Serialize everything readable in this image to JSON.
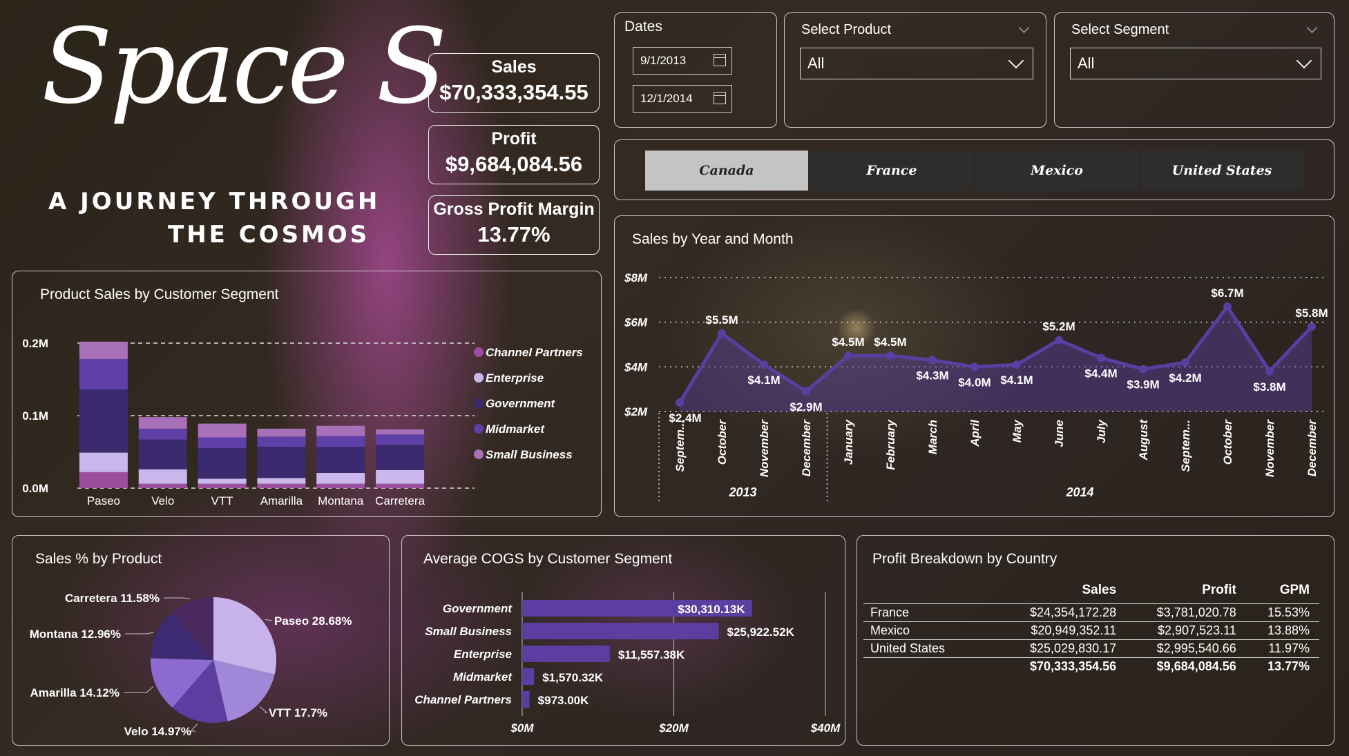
{
  "logo": {
    "script_text": "Space S",
    "tagline_line1": "A JOURNEY THROUGH",
    "tagline_line2": "THE COSMOS"
  },
  "kpis": [
    {
      "label": "Sales",
      "value": "$70,333,354.55"
    },
    {
      "label": "Profit",
      "value": "$9,684,084.56"
    },
    {
      "label": "Gross Profit Margin",
      "value": "13.77%"
    }
  ],
  "dates": {
    "title": "Dates",
    "start": "9/1/2013",
    "end": "12/1/2014"
  },
  "product_slicer": {
    "title": "Select Product",
    "value": "All"
  },
  "segment_slicer": {
    "title": "Select Segment",
    "value": "All"
  },
  "country_tabs": [
    "Canada",
    "France",
    "Mexico",
    "United States"
  ],
  "active_tab": "Canada",
  "colors": {
    "channel_partners": "#9a4f9e",
    "enterprise": "#c9b6ea",
    "government": "#3a2a6e",
    "midmarket": "#5f3fa8",
    "small_business": "#a870b8",
    "line": "#5b3ea0"
  },
  "chart_data": [
    {
      "type": "bar",
      "stacked": true,
      "title": "Product Sales by Customer Segment",
      "categories": [
        "Paseo",
        "Velo",
        "VTT",
        "Amarilla",
        "Montana",
        "Carretera"
      ],
      "yticks": [
        "0.0M",
        "0.1M",
        "0.2M"
      ],
      "ylim": [
        0,
        0.2
      ],
      "legend_position": "right",
      "series": [
        {
          "name": "Channel Partners",
          "color": "#9a4f9e",
          "values": [
            0.022,
            0.006,
            0.006,
            0.006,
            0.006,
            0.006
          ]
        },
        {
          "name": "Enterprise",
          "color": "#c9b6ea",
          "values": [
            0.027,
            0.02,
            0.007,
            0.008,
            0.015,
            0.019
          ]
        },
        {
          "name": "Government",
          "color": "#3a2a6e",
          "values": [
            0.087,
            0.041,
            0.042,
            0.043,
            0.036,
            0.035
          ]
        },
        {
          "name": "Midmarket",
          "color": "#5f3fa8",
          "values": [
            0.042,
            0.015,
            0.015,
            0.014,
            0.015,
            0.014
          ]
        },
        {
          "name": "Small Business",
          "color": "#a870b8",
          "values": [
            0.024,
            0.016,
            0.019,
            0.011,
            0.014,
            0.007
          ]
        }
      ]
    },
    {
      "type": "line",
      "title": "Sales by Year and Month",
      "months": [
        "Septem...",
        "October",
        "November",
        "December",
        "January",
        "February",
        "March",
        "April",
        "May",
        "June",
        "July",
        "August",
        "Septem...",
        "October",
        "November",
        "December"
      ],
      "years": [
        {
          "label": "2013",
          "count": 4
        },
        {
          "label": "2014",
          "count": 12
        }
      ],
      "values": [
        2.4,
        5.5,
        4.1,
        2.9,
        4.5,
        4.5,
        4.3,
        4.0,
        4.1,
        5.2,
        4.4,
        3.9,
        4.2,
        6.7,
        3.8,
        5.8
      ],
      "labels": [
        "$2.4M",
        "$5.5M",
        "$4.1M",
        "$2.9M",
        "$4.5M",
        "$4.5M",
        "$4.3M",
        "$4.0M",
        "$4.1M",
        "$5.2M",
        "$4.4M",
        "$3.9M",
        "$4.2M",
        "$6.7M",
        "$3.8M",
        "$5.8M"
      ],
      "yticks": [
        "$2M",
        "$4M",
        "$6M",
        "$8M"
      ],
      "ylim": [
        2,
        8
      ]
    },
    {
      "type": "pie",
      "title": "Sales % by Product",
      "slices": [
        {
          "label": "Paseo 28.68%",
          "value": 28.68,
          "color": "#c7b3ea"
        },
        {
          "label": "VTT 17.7%",
          "value": 17.7,
          "color": "#a187d8"
        },
        {
          "label": "Velo 14.97%",
          "value": 14.97,
          "color": "#5b3ea0"
        },
        {
          "label": "Amarilla 14.12%",
          "value": 14.12,
          "color": "#8d6ad0"
        },
        {
          "label": "Montana 12.96%",
          "value": 12.96,
          "color": "#3c2a72"
        },
        {
          "label": "Carretera 11.58%",
          "value": 11.58,
          "color": "#4a2a5e"
        }
      ]
    },
    {
      "type": "bar",
      "orientation": "horizontal",
      "title": "Average COGS by Customer Segment",
      "categories": [
        "Government",
        "Small Business",
        "Enterprise",
        "Midmarket",
        "Channel Partners"
      ],
      "values": [
        30310.13,
        25922.52,
        11557.38,
        1570.32,
        973.0
      ],
      "labels": [
        "$30,310.13K",
        "$25,922.52K",
        "$11,557.38K",
        "$1,570.32K",
        "$973.00K"
      ],
      "xticks": [
        "$0M",
        "$20M",
        "$40M"
      ],
      "xlim": [
        0,
        40000
      ]
    }
  ],
  "profit_table": {
    "title": "Profit Breakdown by Country",
    "columns": [
      "",
      "Sales",
      "Profit",
      "GPM"
    ],
    "rows": [
      [
        "France",
        "$24,354,172.28",
        "$3,781,020.78",
        "15.53%"
      ],
      [
        "Mexico",
        "$20,949,352.11",
        "$2,907,523.11",
        "13.88%"
      ],
      [
        "United States",
        "$25,029,830.17",
        "$2,995,540.66",
        "11.97%"
      ]
    ],
    "total": [
      "",
      "$70,333,354.56",
      "$9,684,084.56",
      "13.77%"
    ]
  }
}
